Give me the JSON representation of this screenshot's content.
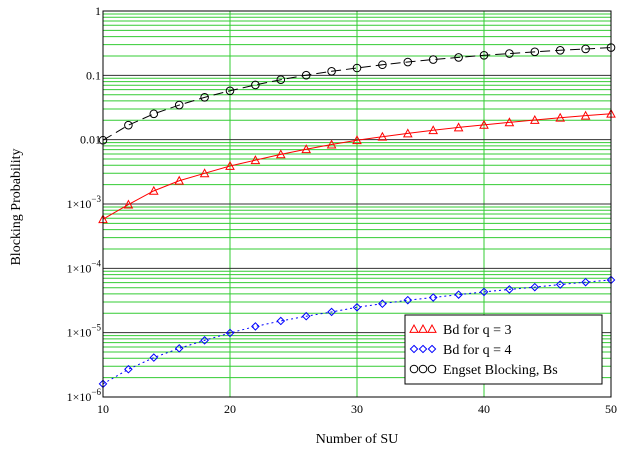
{
  "chart_data": {
    "type": "line",
    "xlabel": "Number of SU",
    "ylabel": "Blocking Probability",
    "xlim": [
      10,
      50
    ],
    "ylim": [
      1e-06,
      1
    ],
    "yscale": "log",
    "grid": true,
    "legend_position": "bottom-right",
    "x_ticks": [
      {
        "value": 10,
        "label": "10"
      },
      {
        "value": 20,
        "label": "20"
      },
      {
        "value": 30,
        "label": "30"
      },
      {
        "value": 40,
        "label": "40"
      },
      {
        "value": 50,
        "label": "50"
      }
    ],
    "y_ticks": [
      {
        "value": 1,
        "base": "1",
        "exp": ""
      },
      {
        "value": 0.1,
        "base": "0.1",
        "exp": ""
      },
      {
        "value": 0.01,
        "base": "0.01",
        "exp": ""
      },
      {
        "value": 0.001,
        "base": "1×10",
        "exp": "−3"
      },
      {
        "value": 0.0001,
        "base": "1×10",
        "exp": "−4"
      },
      {
        "value": 1e-05,
        "base": "1×10",
        "exp": "−5"
      },
      {
        "value": 1e-06,
        "base": "1×10",
        "exp": "−6"
      }
    ],
    "x": [
      10,
      12,
      14,
      16,
      18,
      20,
      22,
      24,
      26,
      28,
      30,
      32,
      34,
      36,
      38,
      40,
      42,
      44,
      46,
      48,
      50
    ],
    "series": [
      {
        "name": "Bd for q = 3",
        "color": "#ff0000",
        "marker": "triangle",
        "line_style": "solid",
        "values": [
          0.00058,
          0.00098,
          0.0016,
          0.0023,
          0.003,
          0.0039,
          0.0048,
          0.0059,
          0.0071,
          0.0084,
          0.0098,
          0.0111,
          0.0125,
          0.014,
          0.0155,
          0.017,
          0.0186,
          0.0202,
          0.0219,
          0.0236,
          0.0253
        ]
      },
      {
        "name": "Bd for q = 4",
        "color": "#0000ff",
        "marker": "diamond",
        "line_style": "dotted",
        "values": [
          1.6e-06,
          2.7e-06,
          4.1e-06,
          5.7e-06,
          7.6e-06,
          9.9e-06,
          1.25e-05,
          1.52e-05,
          1.8e-05,
          2.1e-05,
          2.48e-05,
          2.82e-05,
          3.2e-05,
          3.52e-05,
          3.9e-05,
          4.3e-05,
          4.7e-05,
          5.1e-05,
          5.6e-05,
          6.1e-05,
          6.6e-05
        ]
      },
      {
        "name": "Engset Blocking, Bs",
        "color": "#000000",
        "marker": "circle",
        "line_style": "dashed",
        "values": [
          0.0098,
          0.0168,
          0.0252,
          0.0345,
          0.0455,
          0.0575,
          0.071,
          0.0855,
          0.1005,
          0.1155,
          0.13,
          0.146,
          0.161,
          0.176,
          0.19,
          0.205,
          0.218,
          0.232,
          0.245,
          0.257,
          0.27
        ]
      }
    ]
  }
}
